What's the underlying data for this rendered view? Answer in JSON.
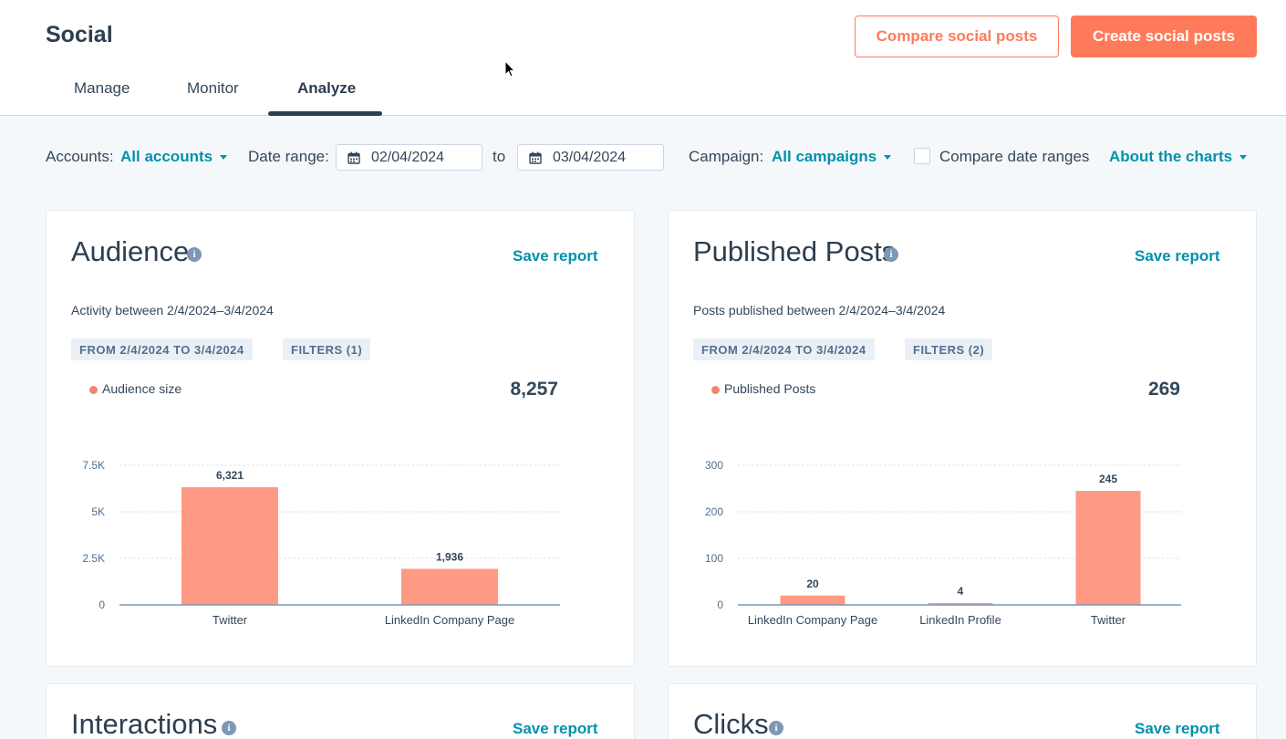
{
  "header": {
    "title": "Social",
    "compare_btn": "Compare social posts",
    "create_btn": "Create social posts"
  },
  "tabs": [
    {
      "label": "Manage"
    },
    {
      "label": "Monitor"
    },
    {
      "label": "Analyze",
      "active": true
    }
  ],
  "filters": {
    "accounts_label": "Accounts:",
    "accounts_value": "All accounts",
    "date_label": "Date range:",
    "date_from": "02/04/2024",
    "to_label": "to",
    "date_to": "03/04/2024",
    "campaign_label": "Campaign:",
    "campaign_value": "All campaigns",
    "compare_label": "Compare date ranges",
    "compare_checked": false,
    "about_label": "About the charts"
  },
  "cards": {
    "audience": {
      "title": "Audience",
      "save": "Save report",
      "subtitle": "Activity between 2/4/2024–3/4/2024",
      "chip_range": "FROM 2/4/2024 TO 3/4/2024",
      "chip_filters": "FILTERS (1)",
      "legend": "Audience size",
      "total": "8,257"
    },
    "posts": {
      "title": "Published Posts",
      "save": "Save report",
      "subtitle": "Posts published between 2/4/2024–3/4/2024",
      "chip_range": "FROM 2/4/2024 TO 3/4/2024",
      "chip_filters": "FILTERS (2)",
      "legend": "Published Posts",
      "total": "269"
    },
    "interactions": {
      "title": "Interactions",
      "save": "Save report"
    },
    "clicks": {
      "title": "Clicks",
      "save": "Save report"
    }
  },
  "colors": {
    "accent": "#ff7a59",
    "link": "#0091ae",
    "bar": "#fe9a83",
    "text": "#33475b"
  },
  "chart_data": [
    {
      "type": "bar",
      "categories": [
        "Twitter",
        "LinkedIn Company Page"
      ],
      "values": [
        6321,
        1936
      ],
      "value_labels": [
        "6,321",
        "1,936"
      ],
      "yticks": [
        "0",
        "2.5K",
        "5K",
        "7.5K"
      ],
      "ytick_values": [
        0,
        2500,
        5000,
        7500
      ],
      "ylim": [
        0,
        7500
      ],
      "series": [
        {
          "name": "Audience size",
          "values": [
            6321,
            1936
          ]
        }
      ],
      "grid": true
    },
    {
      "type": "bar",
      "categories": [
        "LinkedIn Company Page",
        "LinkedIn Profile",
        "Twitter"
      ],
      "values": [
        20,
        4,
        245
      ],
      "value_labels": [
        "20",
        "4",
        "245"
      ],
      "yticks": [
        "0",
        "100",
        "200",
        "300"
      ],
      "ytick_values": [
        0,
        100,
        200,
        300
      ],
      "ylim": [
        0,
        300
      ],
      "series": [
        {
          "name": "Published Posts",
          "values": [
            20,
            4,
            245
          ]
        }
      ],
      "grid": true
    }
  ]
}
